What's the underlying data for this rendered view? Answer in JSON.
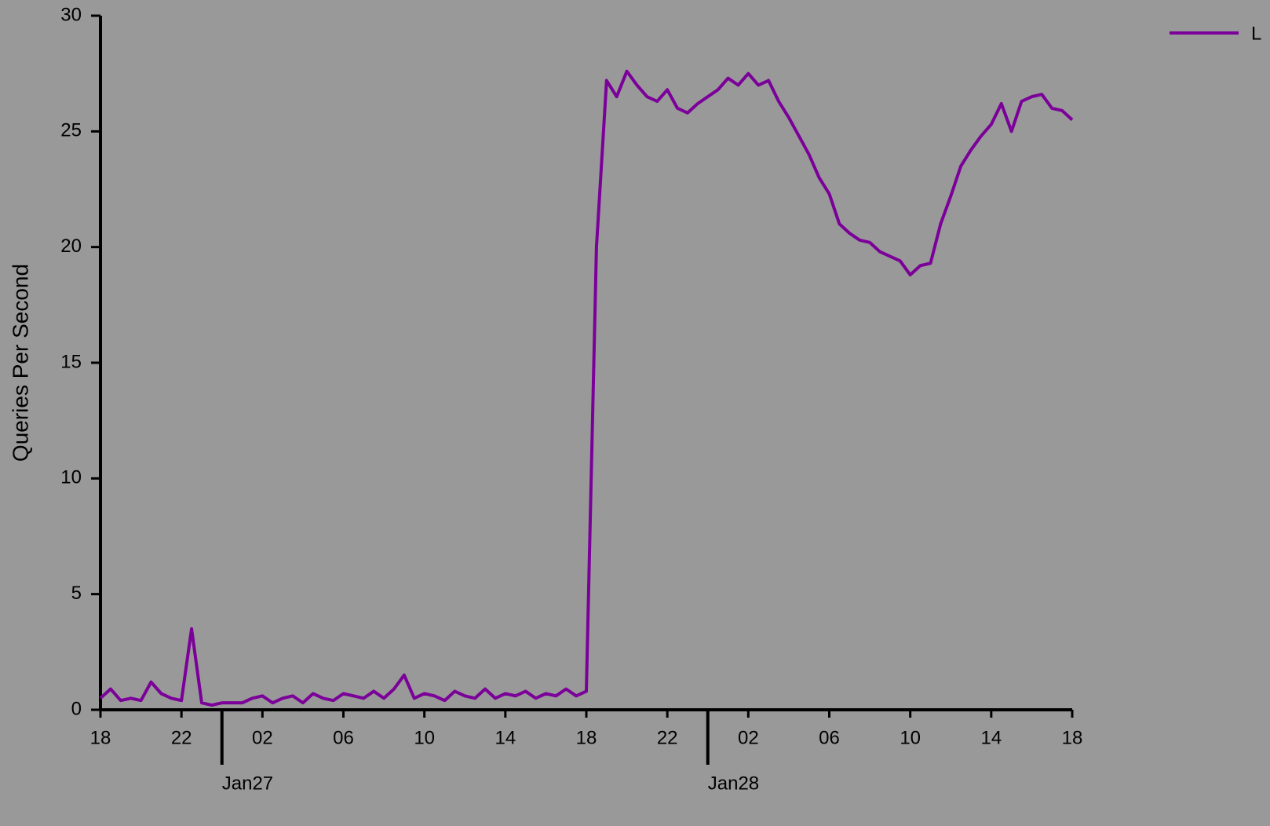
{
  "chart_data": {
    "type": "line",
    "y_label": "Queries Per Second",
    "x": [
      0,
      0.5,
      1,
      1.5,
      2,
      2.5,
      3,
      3.5,
      4,
      4.5,
      5,
      5.5,
      6,
      6.5,
      7,
      7.5,
      8,
      8.5,
      9,
      9.5,
      10,
      10.5,
      11,
      11.5,
      12,
      12.5,
      13,
      13.5,
      14,
      14.5,
      15,
      15.5,
      16,
      16.5,
      17,
      17.5,
      18,
      18.5,
      19,
      19.5,
      20,
      20.5,
      21,
      21.5,
      22,
      22.5,
      23,
      23.5,
      24,
      24.5,
      25,
      25.5,
      26,
      26.5,
      27,
      27.5,
      28,
      28.5,
      29,
      29.5,
      30,
      30.5,
      31,
      31.5,
      32,
      32.5,
      33,
      33.5,
      34,
      34.5,
      35,
      35.5,
      36,
      36.5,
      37,
      37.5,
      38,
      38.5,
      39,
      39.5,
      40,
      40.5,
      41,
      41.5,
      42,
      42.5,
      43,
      43.5,
      44,
      44.5,
      45,
      45.5,
      46,
      46.5,
      47,
      47.5,
      48
    ],
    "series": [
      {
        "name": "L",
        "color": "#7b0099",
        "values": [
          0.5,
          0.9,
          0.4,
          0.5,
          0.4,
          1.2,
          0.7,
          0.5,
          0.4,
          3.5,
          0.3,
          0.2,
          0.3,
          0.3,
          0.3,
          0.5,
          0.6,
          0.3,
          0.5,
          0.6,
          0.3,
          0.7,
          0.5,
          0.4,
          0.7,
          0.6,
          0.5,
          0.8,
          0.5,
          0.9,
          1.5,
          0.5,
          0.7,
          0.6,
          0.4,
          0.8,
          0.6,
          0.5,
          0.9,
          0.5,
          0.7,
          0.6,
          0.8,
          0.5,
          0.7,
          0.6,
          0.9,
          0.6,
          0.8,
          20,
          27.2,
          26.5,
          27.6,
          27.0,
          26.5,
          26.3,
          26.8,
          26.0,
          25.8,
          26.2,
          26.5,
          26.8,
          27.3,
          27.0,
          27.5,
          27.0,
          27.2,
          26.3,
          25.6,
          24.8,
          24.0,
          23.0,
          22.3,
          21.0,
          20.6,
          20.3,
          20.2,
          19.8,
          19.6,
          19.4,
          18.8,
          19.2,
          19.3,
          21.0,
          22.2,
          23.5,
          24.2,
          24.8,
          25.3,
          26.2,
          25.0,
          26.3,
          26.5,
          26.6,
          26.0,
          25.9,
          25.5
        ]
      }
    ],
    "xlim": [
      0,
      48
    ],
    "xticks": [
      {
        "value": 0,
        "label": "18"
      },
      {
        "value": 4,
        "label": "22"
      },
      {
        "value": 8,
        "label": "02"
      },
      {
        "value": 12,
        "label": "06"
      },
      {
        "value": 16,
        "label": "10"
      },
      {
        "value": 20,
        "label": "14"
      },
      {
        "value": 24,
        "label": "18"
      },
      {
        "value": 28,
        "label": "22"
      },
      {
        "value": 32,
        "label": "02"
      },
      {
        "value": 36,
        "label": "06"
      },
      {
        "value": 40,
        "label": "10"
      },
      {
        "value": 44,
        "label": "14"
      },
      {
        "value": 48,
        "label": "18"
      }
    ],
    "xday_ticks": [
      {
        "value": 6,
        "label": "Jan27"
      },
      {
        "value": 30,
        "label": "Jan28"
      }
    ],
    "ylim": [
      0,
      30
    ],
    "yticks": [
      0,
      5,
      10,
      15,
      20,
      25,
      30
    ],
    "legend": "top-right"
  }
}
